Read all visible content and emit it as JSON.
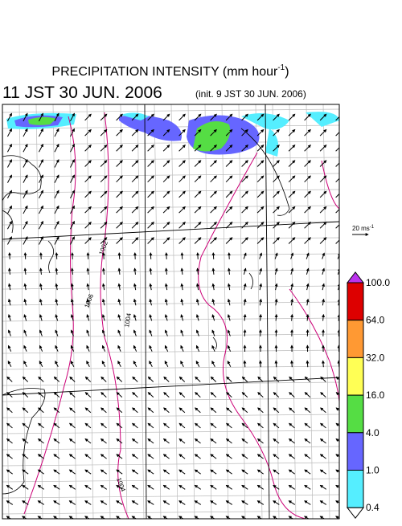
{
  "header": {
    "title": {
      "text": "PRECIPITATION INTENSITY (mm hour",
      "superscript": "-1",
      "suffix": ")"
    },
    "valid_time": "11 JST 30 JUN. 2006",
    "init_time": "(init. 9 JST 30 JUN. 2006)"
  },
  "wind_scale": {
    "text": "20 ms",
    "superscript": "-1"
  },
  "contour_labels": [
    "1002",
    "1006",
    "1004",
    "1004"
  ],
  "legend": {
    "labels": [
      "100.0",
      "64.0",
      "32.0",
      "16.0",
      "4.0",
      "1.0",
      "0.4"
    ],
    "colors": [
      "#dd0000",
      "#ff9933",
      "#ffff55",
      "#55dd44",
      "#6666ff",
      "#55eeff"
    ],
    "over_color": "#bb33ee",
    "under_color": "#ffffff"
  }
}
